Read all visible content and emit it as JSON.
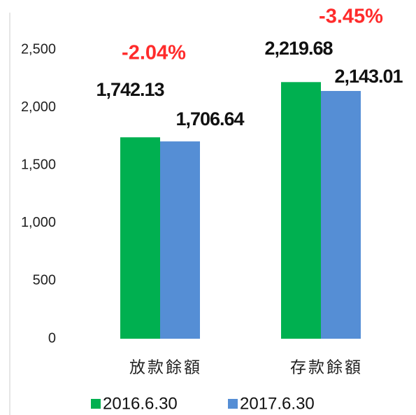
{
  "chart_data": {
    "type": "bar",
    "categories": [
      "放款餘額",
      "存款餘額"
    ],
    "series": [
      {
        "name": "2016.6.30",
        "color": "#00b050",
        "values": [
          1742.13,
          2219.68
        ],
        "value_labels": [
          "1,742.13",
          "2,219.68"
        ]
      },
      {
        "name": "2017.6.30",
        "color": "#558ed5",
        "values": [
          1706.64,
          2143.01
        ],
        "value_labels": [
          "1,706.64",
          "2,143.01"
        ]
      }
    ],
    "annotations": [
      "-2.04%",
      "-3.45%"
    ],
    "ylim": [
      0,
      2500
    ],
    "yticks": [
      0,
      {
        "value": 500,
        "label": "500"
      },
      {
        "value": 1000,
        "label": "1,000"
      },
      {
        "value": 1500,
        "label": "1,500"
      },
      {
        "value": 2000,
        "label": "2,000"
      },
      {
        "value": 2500,
        "label": "2,500"
      }
    ],
    "grid": false
  }
}
